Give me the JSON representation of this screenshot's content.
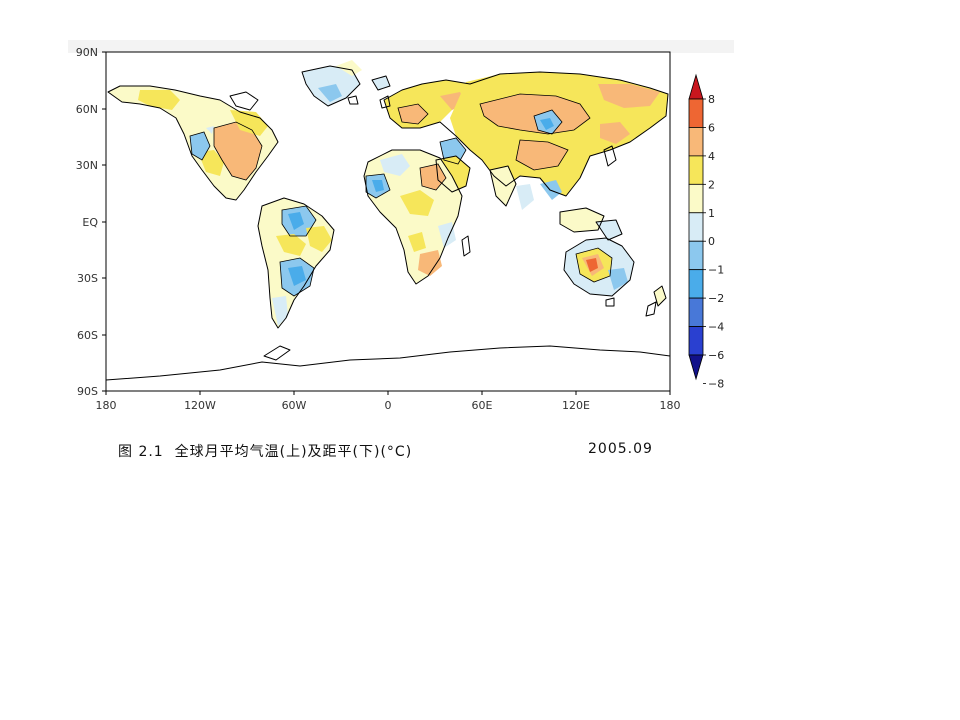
{
  "map": {
    "caption": "图 2.1  全球月平均气温(上)及距平(下)(°C)",
    "date": "2005.09",
    "lat_ticks": [
      "90N",
      "60N",
      "30N",
      "EQ",
      "30S",
      "60S",
      "90S"
    ],
    "lon_ticks": [
      "180",
      "120W",
      "60W",
      "0",
      "60E",
      "120E",
      "180"
    ],
    "legend": {
      "labels": [
        "8",
        "6",
        "4",
        "2",
        "1",
        "0",
        "−1",
        "−2",
        "−4",
        "−6",
        "−8"
      ],
      "colors": [
        "#c8161e",
        "#ee6633",
        "#f8b878",
        "#f6e65a",
        "#fbfac8",
        "#d8ecf6",
        "#8cc8ee",
        "#4aacea",
        "#4878d8",
        "#2a40d0",
        "#12128a"
      ]
    },
    "background_color": "#ffffff"
  }
}
